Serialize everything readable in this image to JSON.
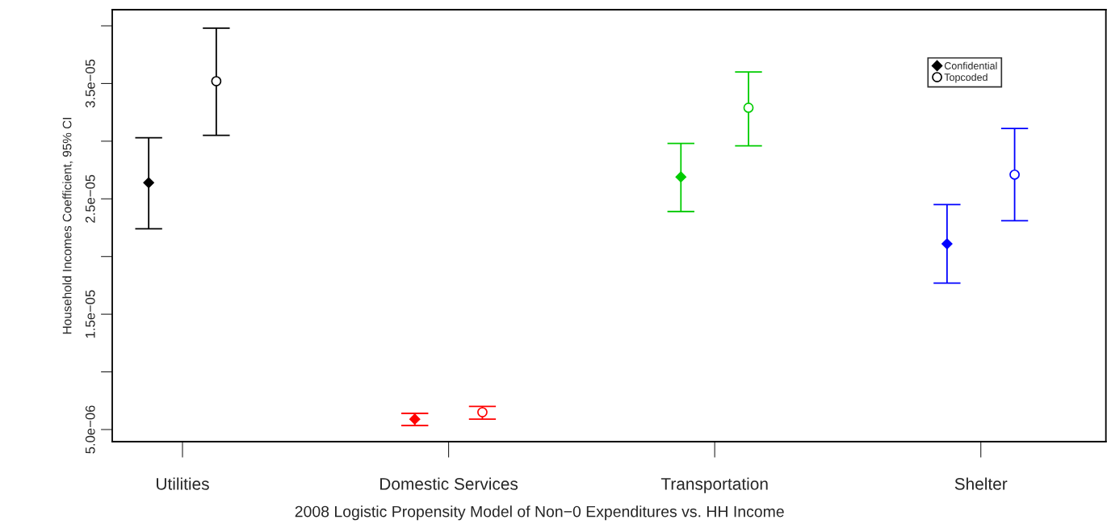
{
  "chart_data": {
    "type": "scatter",
    "xlabel": "2008 Logistic Propensity Model of Non−0 Expenditures vs. HH Income",
    "ylabel": "Household Incomes Coefficient, 95% CI",
    "categories": [
      "Utilities",
      "Domestic Services",
      "Transportation",
      "Shelter"
    ],
    "series": [
      {
        "name": "Confidential",
        "marker": "diamond",
        "colors": [
          "#000000",
          "#ff0000",
          "#00cc00",
          "#0000ff"
        ],
        "values": [
          2.64e-05,
          5.9e-06,
          2.69e-05,
          2.11e-05
        ],
        "errors": [
          [
            2.24e-05,
            3.03e-05
          ],
          [
            5.35e-06,
            6.4e-06
          ],
          [
            2.39e-05,
            2.98e-05
          ],
          [
            1.77e-05,
            2.45e-05
          ]
        ]
      },
      {
        "name": "Topcoded",
        "marker": "circle",
        "colors": [
          "#000000",
          "#ff0000",
          "#00cc00",
          "#0000ff"
        ],
        "values": [
          3.52e-05,
          6.5e-06,
          3.29e-05,
          2.71e-05
        ],
        "errors": [
          [
            3.05e-05,
            3.98e-05
          ],
          [
            5.9e-06,
            7e-06
          ],
          [
            2.96e-05,
            3.6e-05
          ],
          [
            2.31e-05,
            3.11e-05
          ]
        ]
      }
    ],
    "ylim": [
      3.95e-06,
      4.14e-05
    ],
    "yticks": [
      {
        "value": 5e-06,
        "label": "5.0e−06"
      },
      {
        "value": 1e-05,
        "label": null
      },
      {
        "value": 1.5e-05,
        "label": "1.5e−05"
      },
      {
        "value": 2e-05,
        "label": null
      },
      {
        "value": 2.5e-05,
        "label": "2.5e−05"
      },
      {
        "value": 3e-05,
        "label": null
      },
      {
        "value": 3.5e-05,
        "label": "3.5e−05"
      },
      {
        "value": 4e-05,
        "label": null
      }
    ],
    "grid": false,
    "legend": "top right"
  }
}
